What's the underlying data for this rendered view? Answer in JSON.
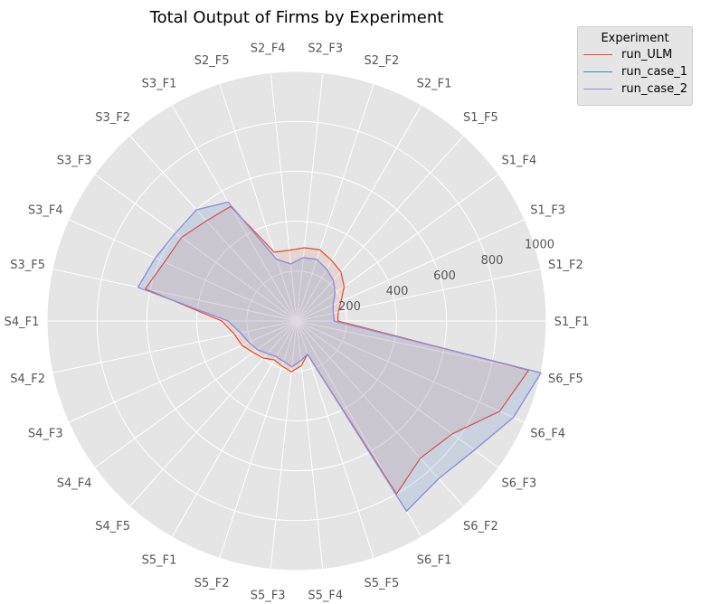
{
  "chart_data": {
    "type": "radar",
    "title": "Total Output of Firms by Experiment",
    "legend": {
      "title": "Experiment",
      "position": "top-right"
    },
    "categories": [
      "S1_F1",
      "S1_F2",
      "S1_F3",
      "S1_F4",
      "S1_F5",
      "S2_F1",
      "S2_F2",
      "S2_F3",
      "S2_F4",
      "S2_F5",
      "S3_F1",
      "S3_F2",
      "S3_F3",
      "S3_F4",
      "S3_F5",
      "S4_F1",
      "S4_F2",
      "S4_F3",
      "S4_F4",
      "S4_F5",
      "S5_F1",
      "S5_F2",
      "S5_F3",
      "S5_F4",
      "S5_F5",
      "S6_F1",
      "S6_F2",
      "S6_F3",
      "S6_F4",
      "S6_F5"
    ],
    "rticks": [
      200,
      400,
      600,
      800,
      1000
    ],
    "rlim": [
      0,
      1000
    ],
    "grid": true,
    "series": [
      {
        "name": "run_ULM",
        "color": "#E24A33",
        "values": [
          165,
          170,
          195,
          235,
          265,
          280,
          300,
          295,
          285,
          290,
          530,
          540,
          570,
          580,
          620,
          300,
          255,
          240,
          215,
          200,
          180,
          190,
          205,
          180,
          140,
          800,
          740,
          770,
          890,
          950
        ]
      },
      {
        "name": "run_case_1",
        "color": "#348ABD",
        "values": [
          150,
          150,
          160,
          190,
          220,
          240,
          260,
          255,
          230,
          260,
          550,
          600,
          600,
          620,
          650,
          275,
          230,
          210,
          195,
          175,
          165,
          170,
          185,
          160,
          140,
          880,
          850,
          880,
          950,
          1000
        ]
      },
      {
        "name": "run_case_2",
        "color": "#988ED5",
        "values": [
          150,
          150,
          160,
          190,
          220,
          240,
          260,
          255,
          230,
          260,
          550,
          600,
          600,
          620,
          650,
          275,
          230,
          210,
          195,
          175,
          165,
          170,
          185,
          160,
          140,
          880,
          850,
          880,
          950,
          1000
        ]
      }
    ]
  }
}
